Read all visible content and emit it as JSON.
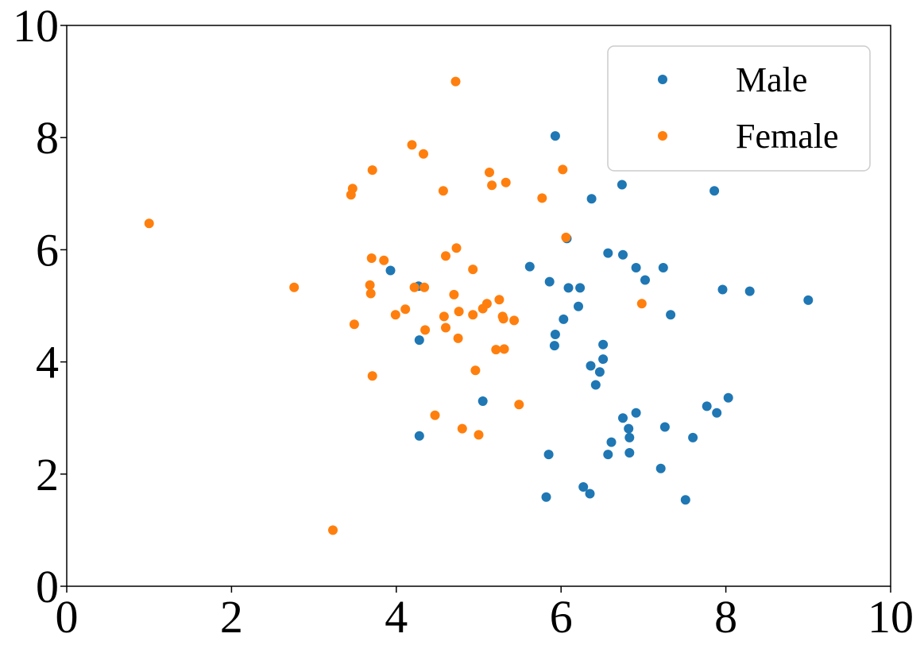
{
  "chart_data": {
    "type": "scatter",
    "xlim": [
      0,
      10
    ],
    "ylim": [
      0,
      10
    ],
    "x_ticks": [
      0,
      2,
      4,
      6,
      8,
      10
    ],
    "y_ticks": [
      0,
      2,
      4,
      6,
      8,
      10
    ],
    "x_tick_labels": [
      "0",
      "2",
      "4",
      "6",
      "8",
      "10"
    ],
    "y_tick_labels": [
      "0",
      "2",
      "4",
      "6",
      "8",
      "10"
    ],
    "grid": false,
    "legend_position": "top-right",
    "series": [
      {
        "name": "Male",
        "color": "#1f77b4",
        "points": [
          [
            5.93,
            8.03
          ],
          [
            6.37,
            6.91
          ],
          [
            6.74,
            7.16
          ],
          [
            7.86,
            7.05
          ],
          [
            6.07,
            6.2
          ],
          [
            5.62,
            5.7
          ],
          [
            3.93,
            5.63
          ],
          [
            4.27,
            5.35
          ],
          [
            5.86,
            5.43
          ],
          [
            6.09,
            5.32
          ],
          [
            6.23,
            5.32
          ],
          [
            6.57,
            5.94
          ],
          [
            6.75,
            5.91
          ],
          [
            6.91,
            5.68
          ],
          [
            7.24,
            5.68
          ],
          [
            7.02,
            5.46
          ],
          [
            7.96,
            5.29
          ],
          [
            8.29,
            5.26
          ],
          [
            9.0,
            5.1
          ],
          [
            6.21,
            4.99
          ],
          [
            6.03,
            4.76
          ],
          [
            7.33,
            4.84
          ],
          [
            5.93,
            4.49
          ],
          [
            5.92,
            4.29
          ],
          [
            4.28,
            4.39
          ],
          [
            6.51,
            4.31
          ],
          [
            6.51,
            4.05
          ],
          [
            6.36,
            3.93
          ],
          [
            6.47,
            3.82
          ],
          [
            6.42,
            3.59
          ],
          [
            5.05,
            3.3
          ],
          [
            8.03,
            3.36
          ],
          [
            7.77,
            3.21
          ],
          [
            7.89,
            3.09
          ],
          [
            6.91,
            3.09
          ],
          [
            6.75,
            3.0
          ],
          [
            6.82,
            2.81
          ],
          [
            7.26,
            2.84
          ],
          [
            6.83,
            2.65
          ],
          [
            7.6,
            2.65
          ],
          [
            4.28,
            2.68
          ],
          [
            6.61,
            2.57
          ],
          [
            5.85,
            2.35
          ],
          [
            6.57,
            2.35
          ],
          [
            6.83,
            2.38
          ],
          [
            7.21,
            2.1
          ],
          [
            6.27,
            1.77
          ],
          [
            6.35,
            1.65
          ],
          [
            5.82,
            1.59
          ],
          [
            7.51,
            1.54
          ]
        ]
      },
      {
        "name": "Female",
        "color": "#ff7f0e",
        "points": [
          [
            4.72,
            9.0
          ],
          [
            4.19,
            7.87
          ],
          [
            4.33,
            7.71
          ],
          [
            3.71,
            7.42
          ],
          [
            6.02,
            7.43
          ],
          [
            5.13,
            7.38
          ],
          [
            5.33,
            7.2
          ],
          [
            5.16,
            7.15
          ],
          [
            3.47,
            7.09
          ],
          [
            3.45,
            6.98
          ],
          [
            4.57,
            7.05
          ],
          [
            5.77,
            6.92
          ],
          [
            1.0,
            6.47
          ],
          [
            6.06,
            6.22
          ],
          [
            4.73,
            6.03
          ],
          [
            4.6,
            5.89
          ],
          [
            3.7,
            5.85
          ],
          [
            3.85,
            5.81
          ],
          [
            4.93,
            5.65
          ],
          [
            2.76,
            5.33
          ],
          [
            3.68,
            5.37
          ],
          [
            4.22,
            5.33
          ],
          [
            4.34,
            5.33
          ],
          [
            3.69,
            5.22
          ],
          [
            4.7,
            5.2
          ],
          [
            5.25,
            5.11
          ],
          [
            5.1,
            5.04
          ],
          [
            5.05,
            4.95
          ],
          [
            6.98,
            5.04
          ],
          [
            4.11,
            4.94
          ],
          [
            4.76,
            4.9
          ],
          [
            3.99,
            4.84
          ],
          [
            4.93,
            4.84
          ],
          [
            4.58,
            4.81
          ],
          [
            5.29,
            4.81
          ],
          [
            5.3,
            4.77
          ],
          [
            5.43,
            4.74
          ],
          [
            3.49,
            4.67
          ],
          [
            4.6,
            4.61
          ],
          [
            4.35,
            4.57
          ],
          [
            4.75,
            4.42
          ],
          [
            5.21,
            4.22
          ],
          [
            5.31,
            4.23
          ],
          [
            4.96,
            3.85
          ],
          [
            3.71,
            3.75
          ],
          [
            5.49,
            3.24
          ],
          [
            4.47,
            3.05
          ],
          [
            4.8,
            2.81
          ],
          [
            5.0,
            2.7
          ],
          [
            3.23,
            1.0
          ]
        ]
      }
    ]
  }
}
